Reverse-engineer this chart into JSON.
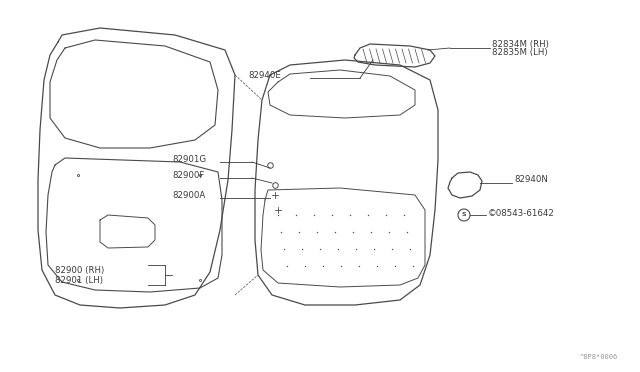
{
  "bg_color": "#ffffff",
  "line_color": "#4a4a4a",
  "label_color": "#3a3a3a",
  "fig_width": 6.4,
  "fig_height": 3.72,
  "dpi": 100,
  "watermark": "^8P8*0006",
  "labels": {
    "82834M_RH": "82834M (RH)",
    "82835M_LH": "82835M (LH)",
    "82940E": "82940E",
    "82940N": "82940N",
    "08543": "©08543-61642",
    "82901G": "82901G",
    "82900F": "82900F",
    "82900A": "82900A",
    "82900_RH": "82900 (RH)",
    "82901_LH": "82901 (LH)"
  }
}
